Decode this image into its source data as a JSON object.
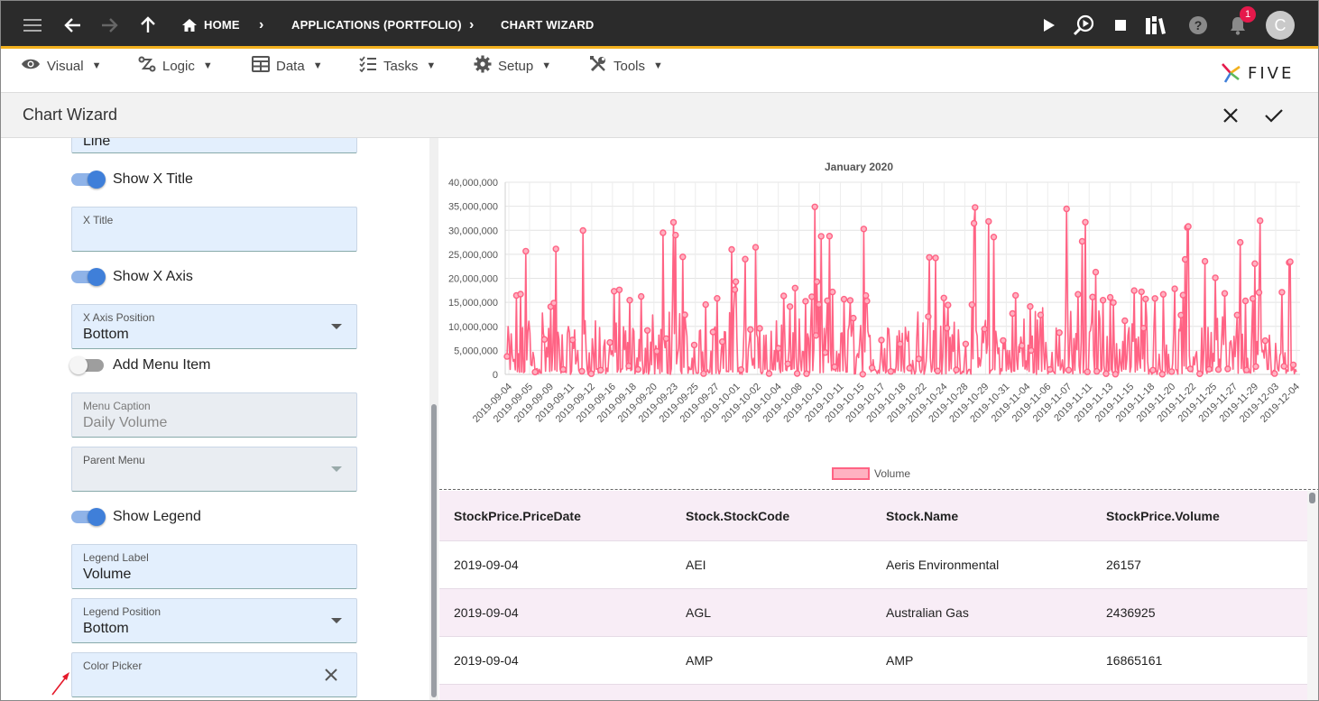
{
  "topbar": {
    "breadcrumbs": [
      "HOME",
      "APPLICATIONS (PORTFOLIO)",
      "CHART WIZARD"
    ],
    "notification_count": "1",
    "avatar_letter": "C"
  },
  "menu": {
    "items": [
      "Visual",
      "Logic",
      "Data",
      "Tasks",
      "Setup",
      "Tools"
    ],
    "logo_text": "FIVE"
  },
  "header": {
    "title": "Chart Wizard"
  },
  "form": {
    "chart_type_value": "Line",
    "show_x_title_label": "Show X Title",
    "x_title_label": "X Title",
    "x_title_value": "",
    "show_x_axis_label": "Show X Axis",
    "x_axis_position_label": "X Axis Position",
    "x_axis_position_value": "Bottom",
    "add_menu_item_label": "Add Menu Item",
    "menu_caption_label": "Menu Caption",
    "menu_caption_value": "Daily Volume",
    "parent_menu_label": "Parent Menu",
    "parent_menu_value": "",
    "show_legend_label": "Show Legend",
    "legend_label_label": "Legend Label",
    "legend_label_value": "Volume",
    "legend_position_label": "Legend Position",
    "legend_position_value": "Bottom",
    "color_picker_label": "Color Picker",
    "color_picker_value": ""
  },
  "toggles": {
    "show_x_title": true,
    "show_x_axis": true,
    "add_menu_item": false,
    "show_legend": true
  },
  "colors": {
    "accent": "#3f7fd9",
    "topbar": "#2b2b2b",
    "topbar_border": "#f2b01e",
    "series": "#ff6384",
    "badge": "#e5194b"
  },
  "chart_data": {
    "type": "line",
    "title": "January 2020",
    "legend": {
      "label": "Volume",
      "position": "bottom"
    },
    "ylim": [
      0,
      40000000
    ],
    "yticks": [
      "0",
      "5,000,000",
      "10,000,000",
      "15,000,000",
      "20,000,000",
      "25,000,000",
      "30,000,000",
      "35,000,000",
      "40,000,000"
    ],
    "x_tick_labels": [
      "2019-09-04",
      "2019-09-05",
      "2019-09-09",
      "2019-09-11",
      "2019-09-12",
      "2019-09-16",
      "2019-09-18",
      "2019-09-20",
      "2019-09-23",
      "2019-09-25",
      "2019-09-27",
      "2019-10-01",
      "2019-10-02",
      "2019-10-04",
      "2019-10-08",
      "2019-10-10",
      "2019-10-11",
      "2019-10-15",
      "2019-10-17",
      "2019-10-18",
      "2019-10-22",
      "2019-10-24",
      "2019-10-28",
      "2019-10-29",
      "2019-10-31",
      "2019-11-04",
      "2019-11-06",
      "2019-11-07",
      "2019-11-11",
      "2019-11-13",
      "2019-11-15",
      "2019-11-18",
      "2019-11-20",
      "2019-11-22",
      "2019-11-25",
      "2019-11-27",
      "2019-11-29",
      "2019-12-03",
      "2019-12-04"
    ],
    "series": [
      {
        "name": "Volume",
        "color": "#ff6384",
        "approx_point_count": 760,
        "approx_max": 35500000
      }
    ],
    "grid": true
  },
  "table": {
    "headers": [
      "StockPrice.PriceDate",
      "Stock.StockCode",
      "Stock.Name",
      "StockPrice.Volume"
    ],
    "rows": [
      [
        "2019-09-04",
        "AEI",
        "Aeris Environmental",
        "26157"
      ],
      [
        "2019-09-04",
        "AGL",
        "Australian Gas",
        "2436925"
      ],
      [
        "2019-09-04",
        "AMP",
        "AMP",
        "16865161"
      ],
      [
        "",
        "",
        "",
        ""
      ]
    ]
  }
}
